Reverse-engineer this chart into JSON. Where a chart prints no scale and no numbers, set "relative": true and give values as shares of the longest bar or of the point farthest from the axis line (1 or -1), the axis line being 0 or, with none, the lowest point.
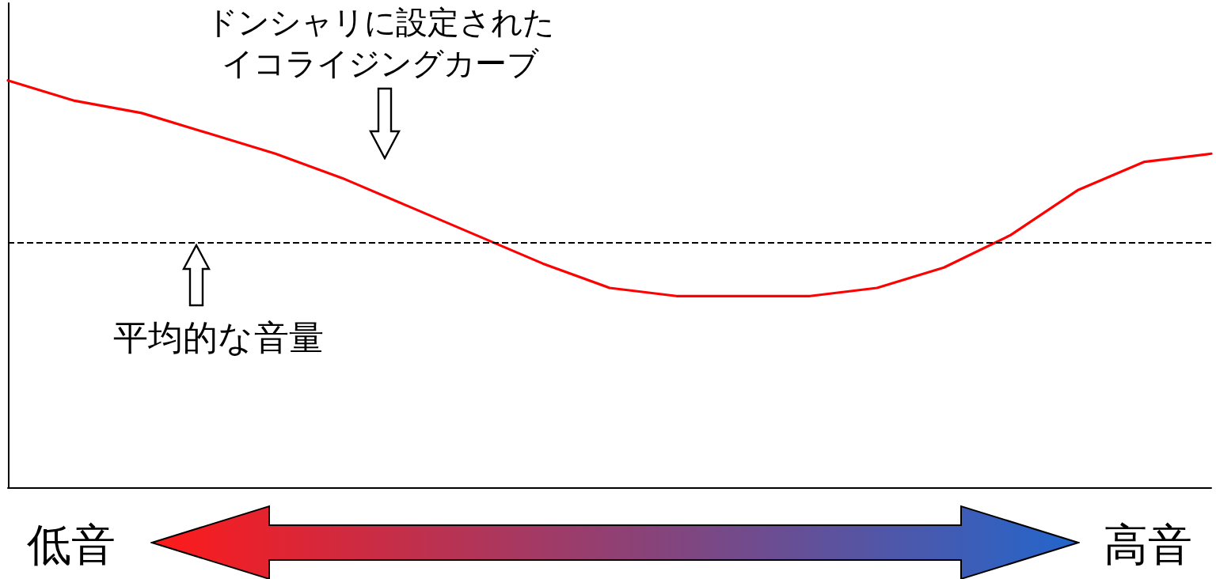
{
  "chart_data": {
    "type": "line",
    "relative": true,
    "categories": [
      null,
      null,
      null,
      null,
      null,
      null,
      null,
      null,
      null,
      null,
      null,
      null,
      null,
      null,
      null,
      null,
      null,
      null,
      null
    ],
    "series": [
      {
        "color": "#ff0000",
        "values": [
          1,
          0.95,
          0.92,
          0.87,
          0.82,
          0.76,
          0.69,
          0.62,
          0.55,
          0.49,
          0.47,
          0.47,
          0.47,
          0.49,
          0.54,
          0.62,
          0.73,
          0.8,
          0.82
        ]
      }
    ],
    "ref_lines": [
      {
        "axis": "y",
        "value": 0.6,
        "color": "#000000",
        "line_style": "dashed"
      }
    ],
    "annotations": [
      "ドンシャリに設定されたイコライジングカーブ",
      "平均的な音量",
      "低音",
      "高音"
    ],
    "grid": false,
    "marker": "none",
    "line_style": "solid"
  }
}
